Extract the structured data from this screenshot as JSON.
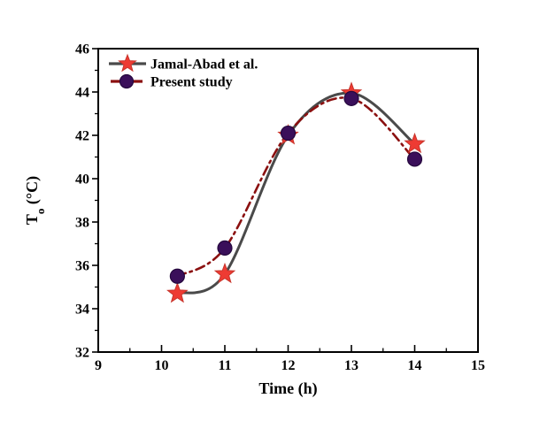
{
  "figure": {
    "background": "#ffffff",
    "border_color": "#000000"
  },
  "chart_data": {
    "type": "line",
    "title": "",
    "xlabel": "Time (h)",
    "ylabel": {
      "base": "T",
      "sub": "o",
      "rest": " (°C)"
    },
    "xlim": [
      9,
      15
    ],
    "ylim": [
      32,
      46
    ],
    "x_major_ticks": [
      9,
      10,
      11,
      12,
      13,
      14,
      15
    ],
    "x_minor_step": 0.5,
    "y_major_ticks": [
      32,
      34,
      36,
      38,
      40,
      42,
      44,
      46
    ],
    "y_minor_step": 1,
    "grid": false,
    "legend_position": "top-left",
    "series": [
      {
        "name": "Jamal-Abad et al.",
        "marker": "star",
        "marker_color": "#ee3b33",
        "marker_edge_color": "#c8352c",
        "line_color": "#4a4a4a",
        "line_style": "solid",
        "x": [
          10.25,
          11,
          12,
          13,
          14
        ],
        "y": [
          34.7,
          35.6,
          42.0,
          43.95,
          41.6
        ]
      },
      {
        "name": "Present study",
        "marker": "circle",
        "marker_color": "#3a0f5a",
        "marker_edge_color": "#24073d",
        "line_color": "#8b1010",
        "line_style": "dash-dot",
        "x": [
          10.25,
          11,
          12,
          13,
          14
        ],
        "y": [
          35.5,
          36.8,
          42.1,
          43.7,
          40.9
        ]
      }
    ]
  }
}
